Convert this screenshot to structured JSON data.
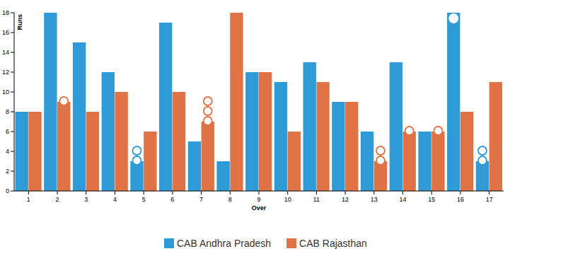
{
  "chart_data": {
    "type": "bar",
    "x_label": "Over",
    "y_label": "Runs",
    "categories": [
      "1",
      "2",
      "3",
      "4",
      "5",
      "6",
      "7",
      "8",
      "9",
      "10",
      "11",
      "12",
      "13",
      "14",
      "15",
      "16",
      "17"
    ],
    "series": [
      {
        "name": "CAB Andhra Pradesh",
        "color": "#2e9bd6",
        "values": [
          8,
          18,
          15,
          12,
          3,
          17,
          5,
          3,
          12,
          11,
          13,
          9,
          6,
          13,
          6,
          18,
          3
        ],
        "wickets": [
          0,
          0,
          0,
          0,
          2,
          0,
          0,
          0,
          0,
          0,
          0,
          0,
          0,
          0,
          0,
          1,
          2
        ]
      },
      {
        "name": "CAB Rajasthan",
        "color": "#e07345",
        "values": [
          8,
          9,
          8,
          10,
          6,
          10,
          7,
          18,
          12,
          6,
          11,
          9,
          3,
          6,
          6,
          8,
          11
        ],
        "wickets": [
          0,
          1,
          0,
          0,
          0,
          0,
          3,
          0,
          0,
          0,
          0,
          0,
          2,
          1,
          1,
          0,
          0
        ]
      }
    ],
    "ylim": [
      0,
      18
    ],
    "yticks": [
      0,
      2,
      4,
      6,
      8,
      10,
      12,
      14,
      16,
      18
    ],
    "grid": false,
    "legend": "bottom"
  }
}
